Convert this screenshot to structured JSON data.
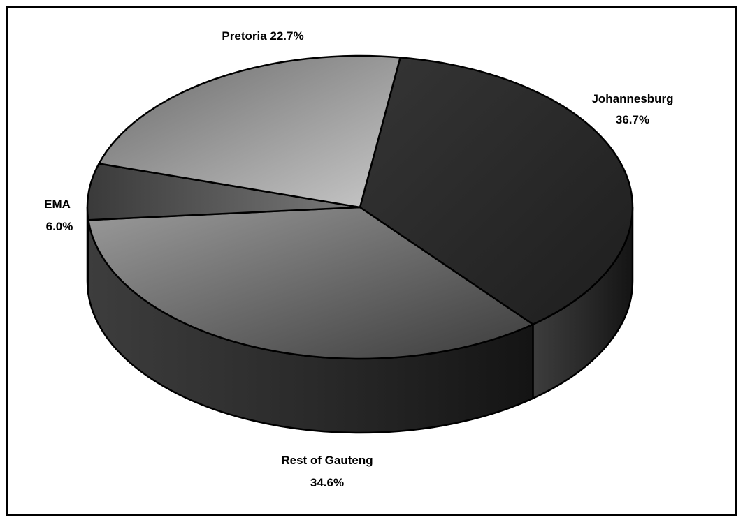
{
  "chart_data": {
    "type": "pie",
    "style": "3d",
    "title": "",
    "slices": [
      {
        "label": "Johannesburg",
        "value": 36.7,
        "display": "36.7%",
        "color": "#2c2c2c"
      },
      {
        "label": "Rest of Gauteng",
        "value": 34.6,
        "display": "34.6%",
        "color": "#6b6b6b"
      },
      {
        "label": "EMA",
        "value": 6.0,
        "display": "6.0%",
        "color": "#4e4e4e"
      },
      {
        "label": "Pretoria",
        "value": 22.7,
        "display": "22.7%",
        "color": "#a2a2a2"
      }
    ],
    "legend": "none"
  }
}
